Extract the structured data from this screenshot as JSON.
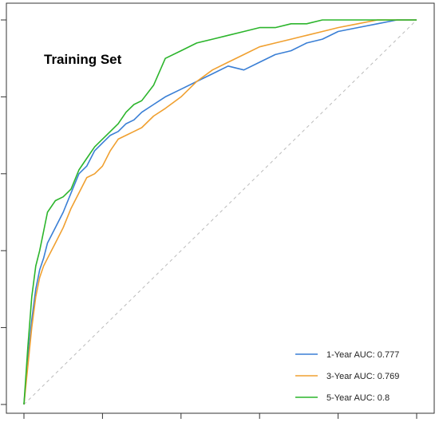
{
  "chart_data": {
    "type": "line",
    "title": "Training Set",
    "xlabel": "",
    "ylabel": "",
    "xlim": [
      0,
      1
    ],
    "ylim": [
      0,
      1
    ],
    "x_ticks": [
      0,
      0.2,
      0.4,
      0.6,
      0.8,
      1.0
    ],
    "y_ticks": [
      0,
      0.2,
      0.4,
      0.6,
      0.8,
      1.0
    ],
    "tick_labels_shown": false,
    "grid": false,
    "legend_position": "bottom-right",
    "reference_line": {
      "from": [
        0,
        0
      ],
      "to": [
        1,
        1
      ],
      "style": "dashed",
      "color": "#bbbbbb"
    },
    "series": [
      {
        "name": "1-Year AUC: 0.777",
        "color": "#3a7fd5",
        "x": [
          0,
          0.01,
          0.02,
          0.03,
          0.04,
          0.05,
          0.06,
          0.08,
          0.1,
          0.12,
          0.14,
          0.16,
          0.18,
          0.2,
          0.22,
          0.24,
          0.26,
          0.28,
          0.3,
          0.33,
          0.36,
          0.4,
          0.44,
          0.48,
          0.52,
          0.56,
          0.6,
          0.64,
          0.68,
          0.72,
          0.76,
          0.8,
          0.85,
          0.9,
          0.95,
          1.0
        ],
        "y": [
          0,
          0.12,
          0.22,
          0.3,
          0.35,
          0.38,
          0.42,
          0.46,
          0.5,
          0.55,
          0.6,
          0.62,
          0.66,
          0.68,
          0.7,
          0.71,
          0.73,
          0.74,
          0.76,
          0.78,
          0.8,
          0.82,
          0.84,
          0.86,
          0.88,
          0.87,
          0.89,
          0.91,
          0.92,
          0.94,
          0.95,
          0.97,
          0.98,
          0.99,
          1.0,
          1.0
        ]
      },
      {
        "name": "3-Year AUC: 0.769",
        "color": "#f0a030",
        "x": [
          0,
          0.01,
          0.02,
          0.03,
          0.04,
          0.05,
          0.06,
          0.08,
          0.1,
          0.12,
          0.14,
          0.16,
          0.18,
          0.2,
          0.22,
          0.24,
          0.26,
          0.28,
          0.3,
          0.33,
          0.36,
          0.4,
          0.44,
          0.48,
          0.52,
          0.56,
          0.6,
          0.64,
          0.68,
          0.72,
          0.76,
          0.8,
          0.85,
          0.9,
          0.95,
          1.0
        ],
        "y": [
          0,
          0.1,
          0.2,
          0.28,
          0.33,
          0.36,
          0.38,
          0.42,
          0.46,
          0.51,
          0.55,
          0.59,
          0.6,
          0.62,
          0.66,
          0.69,
          0.7,
          0.71,
          0.72,
          0.75,
          0.77,
          0.8,
          0.84,
          0.87,
          0.89,
          0.91,
          0.93,
          0.94,
          0.95,
          0.96,
          0.97,
          0.98,
          0.99,
          1.0,
          1.0,
          1.0
        ]
      },
      {
        "name": "5-Year AUC: 0.8",
        "color": "#2cb52c",
        "x": [
          0,
          0.01,
          0.02,
          0.03,
          0.04,
          0.05,
          0.06,
          0.08,
          0.1,
          0.12,
          0.14,
          0.16,
          0.18,
          0.2,
          0.22,
          0.24,
          0.26,
          0.28,
          0.3,
          0.33,
          0.36,
          0.4,
          0.44,
          0.48,
          0.52,
          0.56,
          0.6,
          0.64,
          0.68,
          0.72,
          0.76,
          0.8,
          0.85,
          0.9,
          0.95,
          1.0
        ],
        "y": [
          0,
          0.15,
          0.28,
          0.36,
          0.4,
          0.45,
          0.5,
          0.53,
          0.54,
          0.56,
          0.61,
          0.64,
          0.67,
          0.69,
          0.71,
          0.73,
          0.76,
          0.78,
          0.79,
          0.83,
          0.9,
          0.92,
          0.94,
          0.95,
          0.96,
          0.97,
          0.98,
          0.98,
          0.99,
          0.99,
          1.0,
          1.0,
          1.0,
          1.0,
          1.0,
          1.0
        ]
      }
    ]
  }
}
